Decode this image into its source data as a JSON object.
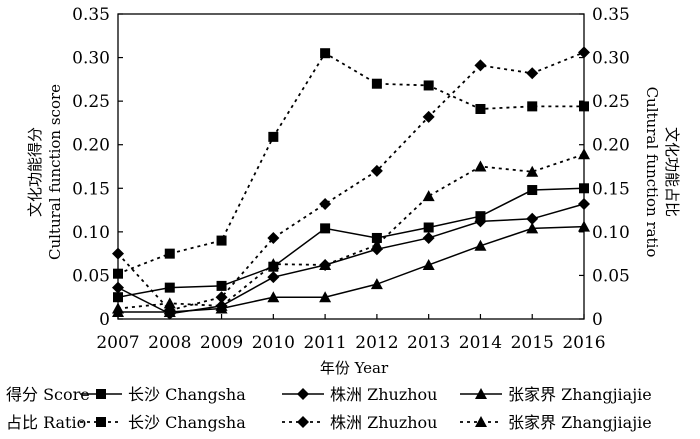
{
  "chart_data": {
    "type": "line",
    "x": [
      2007,
      2008,
      2009,
      2010,
      2011,
      2012,
      2013,
      2014,
      2015,
      2016
    ],
    "xlabel": "年份 Year",
    "ylabel_left_cn": "文化功能得分",
    "ylabel_left_en": "Cultural function score",
    "ylabel_right_cn": "文化功能占比",
    "ylabel_right_en": "Cultural function ratio",
    "ylim_left": [
      0,
      0.35
    ],
    "ylim_right": [
      0,
      0.35
    ],
    "yticks": [
      "0",
      "0.05",
      "0.10",
      "0.15",
      "0.20",
      "0.25",
      "0.30",
      "0.35"
    ],
    "grid": false,
    "legend_rows": [
      {
        "label": "得分 Score",
        "style": "solid"
      },
      {
        "label": "占比 Ratio",
        "style": "dotted"
      }
    ],
    "series": [
      {
        "name": "长沙 Changsha",
        "group": "得分 Score",
        "style": "solid",
        "marker": "square",
        "values": [
          0.025,
          0.036,
          0.038,
          0.06,
          0.104,
          0.093,
          0.105,
          0.118,
          0.148,
          0.15
        ]
      },
      {
        "name": "株洲 Zhuzhou",
        "group": "得分 Score",
        "style": "solid",
        "marker": "diamond",
        "values": [
          0.036,
          0.006,
          0.015,
          0.048,
          0.062,
          0.08,
          0.093,
          0.112,
          0.115,
          0.132
        ]
      },
      {
        "name": "张家界 Zhangjiajie",
        "group": "得分 Score",
        "style": "solid",
        "marker": "triangle",
        "values": [
          0.008,
          0.008,
          0.012,
          0.025,
          0.025,
          0.04,
          0.062,
          0.084,
          0.104,
          0.106
        ]
      },
      {
        "name": "长沙 Changsha",
        "group": "占比 Ratio",
        "style": "dotted",
        "marker": "square",
        "values": [
          0.052,
          0.075,
          0.09,
          0.209,
          0.305,
          0.27,
          0.268,
          0.241,
          0.244,
          0.244
        ]
      },
      {
        "name": "株洲 Zhuzhou",
        "group": "占比 Ratio",
        "style": "dotted",
        "marker": "diamond",
        "values": [
          0.075,
          0.01,
          0.025,
          0.093,
          0.132,
          0.17,
          0.232,
          0.291,
          0.282,
          0.306
        ]
      },
      {
        "name": "张家界 Zhangjiajie",
        "group": "占比 Ratio",
        "style": "dotted",
        "marker": "triangle",
        "values": [
          0.012,
          0.018,
          0.015,
          0.063,
          0.062,
          0.085,
          0.141,
          0.175,
          0.169,
          0.189
        ]
      }
    ]
  }
}
